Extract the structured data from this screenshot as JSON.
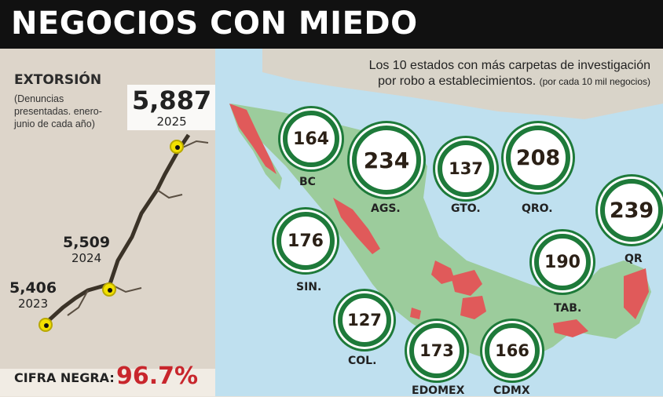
{
  "header": {
    "title": "NEGOCIOS CON MIEDO"
  },
  "extortion": {
    "title": "EXTORSIÓN",
    "subtitle": "(Denuncias presentadas. enero-junio de cada año)",
    "points": [
      {
        "value": "5,406",
        "year": "2023"
      },
      {
        "value": "5,509",
        "year": "2024"
      },
      {
        "value": "5,887",
        "year": "2025"
      }
    ],
    "cifra_label": "CIFRA NEGRA:",
    "cifra_value": "96.7%"
  },
  "map": {
    "title_line1": "Los 10 estados con más carpetas de investigación",
    "title_line2": "por robo a establecimientos.",
    "title_note": "(por cada 10 mil negocios)",
    "states": [
      {
        "abbr": "BC",
        "value": "164"
      },
      {
        "abbr": "AGS.",
        "value": "234"
      },
      {
        "abbr": "GTO.",
        "value": "137"
      },
      {
        "abbr": "QRO.",
        "value": "208"
      },
      {
        "abbr": "QR",
        "value": "239"
      },
      {
        "abbr": "SIN.",
        "value": "176"
      },
      {
        "abbr": "TAB.",
        "value": "190"
      },
      {
        "abbr": "COL.",
        "value": "127"
      },
      {
        "abbr": "EDOMEX",
        "value": "173"
      },
      {
        "abbr": "CDMX",
        "value": "166"
      }
    ]
  },
  "colors": {
    "badge_ring": "#1e7a3a",
    "highlight_state": "#e05a5a",
    "cifra": "#c8262c",
    "dot": "#f2e000"
  }
}
